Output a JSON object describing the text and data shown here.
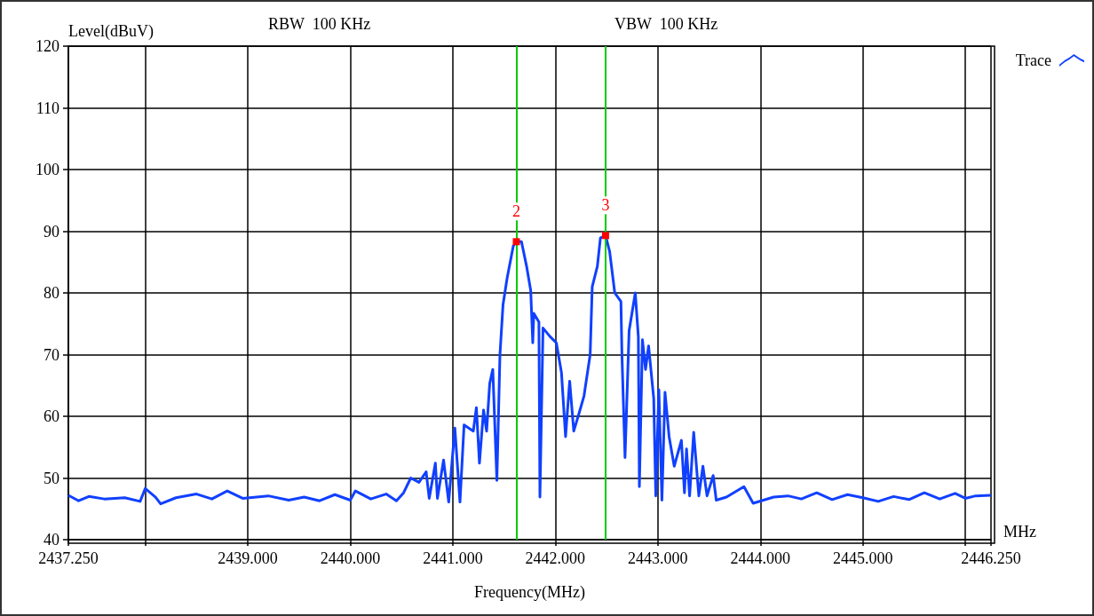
{
  "chart_data": {
    "type": "line",
    "xlabel": "Frequency(MHz)",
    "ylabel": "Level(dBuV)",
    "annotations": [
      "RBW  100 KHz",
      "VBW  100 KHz",
      "MHz",
      {
        "text": "2",
        "x": 2441.62,
        "y": 88.3
      },
      {
        "text": "3",
        "x": 2442.49,
        "y": 89.3
      }
    ],
    "ref_lines": [
      {
        "axis": "x",
        "value": 2441.62,
        "color": "#00cc00"
      },
      {
        "axis": "x",
        "value": 2442.49,
        "color": "#00cc00"
      }
    ],
    "xlim": [
      2437.25,
      2446.25
    ],
    "ylim": [
      40,
      120
    ],
    "xticks": [
      {
        "value": 2437.25,
        "label": "2437.250"
      },
      {
        "value": 2438,
        "label": null
      },
      {
        "value": 2439,
        "label": "2439.000"
      },
      {
        "value": 2440,
        "label": "2440.000"
      },
      {
        "value": 2441,
        "label": "2441.000"
      },
      {
        "value": 2442,
        "label": "2442.000"
      },
      {
        "value": 2443,
        "label": "2443.000"
      },
      {
        "value": 2444,
        "label": "2444.000"
      },
      {
        "value": 2445,
        "label": "2445.000"
      },
      {
        "value": 2446,
        "label": null
      },
      {
        "value": 2446.25,
        "label": "2446.250"
      }
    ],
    "yticks": [
      40,
      50,
      60,
      70,
      80,
      90,
      100,
      110,
      120
    ],
    "grid": true,
    "legend": "top right",
    "marker": "none",
    "line_style": "solid",
    "series": [
      {
        "name": "Trace",
        "color": "#1040ff",
        "x": [
          2437.25,
          2437.35,
          2437.45,
          2437.6,
          2437.8,
          2437.95,
          2438.0,
          2438.1,
          2438.15,
          2438.3,
          2438.5,
          2438.65,
          2438.8,
          2438.95,
          2439.2,
          2439.4,
          2439.55,
          2439.7,
          2439.85,
          2440.0,
          2440.05,
          2440.2,
          2440.35,
          2440.45,
          2440.52,
          2440.59,
          2440.67,
          2440.74,
          2440.77,
          2440.83,
          2440.85,
          2440.91,
          2440.96,
          2441.02,
          2441.07,
          2441.11,
          2441.2,
          2441.23,
          2441.26,
          2441.3,
          2441.33,
          2441.36,
          2441.39,
          2441.43,
          2441.46,
          2441.49,
          2441.53,
          2441.59,
          2441.62,
          2441.67,
          2441.72,
          2441.76,
          2441.78,
          2441.79,
          2441.84,
          2441.85,
          2441.88,
          2441.95,
          2442.01,
          2442.03,
          2442.06,
          2442.1,
          2442.14,
          2442.18,
          2442.23,
          2442.28,
          2442.34,
          2442.36,
          2442.41,
          2442.44,
          2442.49,
          2442.53,
          2442.58,
          2442.64,
          2442.65,
          2442.68,
          2442.72,
          2442.78,
          2442.81,
          2442.82,
          2442.85,
          2442.88,
          2442.91,
          2442.96,
          2442.98,
          2443.01,
          2443.04,
          2443.07,
          2443.11,
          2443.16,
          2443.23,
          2443.26,
          2443.28,
          2443.31,
          2443.35,
          2443.4,
          2443.44,
          2443.48,
          2443.54,
          2443.57,
          2443.67,
          2443.84,
          2443.93,
          2444.13,
          2444.27,
          2444.4,
          2444.55,
          2444.7,
          2444.85,
          2445.0,
          2445.15,
          2445.3,
          2445.45,
          2445.6,
          2445.75,
          2445.9,
          2446.0,
          2446.1,
          2446.25
        ],
        "values": [
          47.2,
          46.3,
          47.0,
          46.6,
          46.8,
          46.2,
          48.3,
          46.9,
          45.8,
          46.8,
          47.4,
          46.6,
          47.9,
          46.7,
          47.1,
          46.4,
          46.9,
          46.3,
          47.3,
          46.4,
          47.9,
          46.6,
          47.4,
          46.3,
          47.6,
          50.0,
          49.3,
          51.0,
          46.7,
          52.4,
          46.7,
          52.9,
          46.1,
          58.1,
          46.1,
          58.6,
          57.6,
          61.4,
          52.4,
          61.0,
          57.6,
          65.3,
          67.6,
          49.6,
          70.0,
          78.1,
          82.4,
          87.6,
          88.3,
          88.3,
          84.3,
          80.4,
          71.9,
          76.7,
          75.3,
          46.9,
          74.3,
          72.9,
          71.9,
          70.0,
          67.1,
          56.7,
          65.7,
          57.6,
          60.4,
          63.3,
          70.0,
          81.0,
          84.3,
          88.9,
          89.3,
          86.7,
          80.0,
          78.6,
          70.0,
          53.3,
          73.9,
          80.0,
          72.9,
          48.6,
          72.4,
          67.6,
          71.4,
          62.9,
          47.1,
          64.3,
          46.4,
          63.9,
          56.7,
          51.9,
          56.1,
          47.6,
          54.7,
          47.1,
          57.4,
          47.1,
          51.9,
          47.1,
          50.4,
          46.4,
          46.9,
          48.6,
          45.9,
          46.9,
          47.1,
          46.6,
          47.6,
          46.5,
          47.3,
          46.8,
          46.2,
          47.0,
          46.5,
          47.6,
          46.6,
          47.5,
          46.7,
          47.1,
          47.2
        ]
      }
    ]
  }
}
